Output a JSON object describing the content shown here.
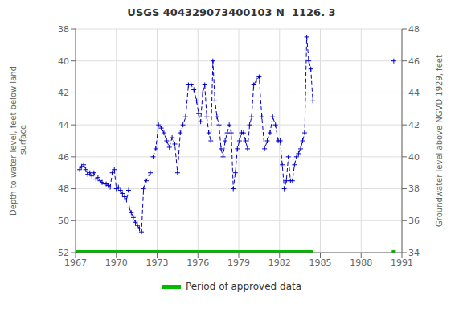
{
  "chart_data": {
    "type": "line",
    "title": "USGS 404329073400103 N  1126. 3",
    "y_label": "Depth to water level, feet below land\n surface",
    "y2_label": "Groundwater level above NGVD 1929, feet",
    "xlim": [
      1967,
      1991
    ],
    "xticks": [
      1967,
      1970,
      1973,
      1976,
      1979,
      1982,
      1985,
      1988,
      1991
    ],
    "ylim": [
      52,
      38
    ],
    "yticks": [
      38,
      40,
      42,
      44,
      46,
      48,
      50,
      52
    ],
    "y2lim": [
      34,
      48
    ],
    "y2ticks": [
      34,
      36,
      38,
      40,
      42,
      44,
      46,
      48
    ],
    "grid": true,
    "legend": "bottom",
    "series": [
      {
        "color": "#0000CC",
        "marker": "plus",
        "line_style": "dashed",
        "x": [
          1967.3,
          1967.45,
          1967.6,
          1967.75,
          1967.9,
          1968.05,
          1968.2,
          1968.35,
          1968.5,
          1968.65,
          1968.8,
          1968.95,
          1969.1,
          1969.25,
          1969.4,
          1969.55,
          1969.7,
          1969.85,
          1970.0,
          1970.15,
          1970.3,
          1970.45,
          1970.6,
          1970.75,
          1970.9
        ],
        "values": [
          46.8,
          46.6,
          46.5,
          46.8,
          47.1,
          47.0,
          47.2,
          47.0,
          47.4,
          47.3,
          47.5,
          47.6,
          47.7,
          47.7,
          47.8,
          47.9,
          47.0,
          46.8,
          48.0,
          47.9,
          48.1,
          48.3,
          48.5,
          48.7,
          48.1
        ]
      },
      {
        "color": "#0000CC",
        "marker": "plus",
        "line_style": "dashed",
        "x": [
          1970.95,
          1971.1,
          1971.25,
          1971.4,
          1971.55,
          1971.7,
          1971.85,
          1972.0,
          1972.2,
          1972.5
        ],
        "values": [
          49.2,
          49.5,
          49.8,
          50.1,
          50.3,
          50.5,
          50.7,
          48.0,
          47.5,
          47.0
        ]
      },
      {
        "color": "#0000CC",
        "marker": "plus",
        "line_style": "dashed",
        "x": [
          1972.7,
          1972.9,
          1973.1,
          1973.3,
          1973.5,
          1973.7,
          1973.9,
          1974.1,
          1974.3,
          1974.5,
          1974.7,
          1974.9,
          1975.1,
          1975.3,
          1975.5,
          1975.7,
          1975.9,
          1976.05,
          1976.2,
          1976.35,
          1976.5,
          1976.65,
          1976.8,
          1976.95,
          1977.1,
          1977.25,
          1977.4,
          1977.55,
          1977.7,
          1977.85,
          1978.0,
          1978.15,
          1978.3,
          1978.45,
          1978.6,
          1978.75,
          1978.9,
          1979.05,
          1979.2,
          1979.35,
          1979.5,
          1979.65,
          1979.8,
          1979.95,
          1980.1,
          1980.3,
          1980.5,
          1980.7,
          1980.9,
          1981.1,
          1981.3,
          1981.5,
          1981.7,
          1981.9,
          1982.05,
          1982.2,
          1982.35,
          1982.5,
          1982.65,
          1982.8,
          1982.95,
          1983.1,
          1983.25,
          1983.4,
          1983.55,
          1983.7,
          1983.85,
          1984.0,
          1984.15,
          1984.3,
          1984.45
        ],
        "values": [
          46.0,
          45.5,
          44.0,
          44.2,
          44.5,
          45.0,
          45.4,
          44.8,
          45.2,
          47.0,
          44.5,
          44.0,
          43.5,
          41.5,
          41.5,
          41.8,
          42.5,
          43.3,
          43.8,
          42.0,
          41.5,
          43.5,
          44.5,
          45.0,
          40.0,
          42.5,
          43.5,
          44.0,
          45.5,
          46.0,
          45.0,
          44.5,
          44.0,
          44.5,
          48.0,
          47.0,
          45.5,
          45.0,
          44.5,
          44.5,
          45.0,
          45.5,
          44.0,
          43.5,
          41.5,
          41.2,
          41.0,
          43.5,
          45.5,
          45.0,
          44.5,
          43.5,
          44.0,
          45.0,
          45.0,
          46.5,
          48.0,
          47.5,
          46.0,
          47.5,
          47.5,
          46.5,
          46.0,
          45.8,
          45.5,
          45.0,
          44.5,
          38.5,
          40.0,
          40.5,
          42.5
        ]
      },
      {
        "color": "#0000CC",
        "marker": "plus",
        "line_style": "dashed",
        "x": [
          1990.4
        ],
        "values": [
          40.0
        ]
      },
      {
        "name": "Period of approved data",
        "color": "#00bb00",
        "type": "range",
        "ranges": [
          [
            1967.0,
            1984.5
          ],
          [
            1990.25,
            1990.55
          ]
        ],
        "value": 52.0
      }
    ]
  }
}
